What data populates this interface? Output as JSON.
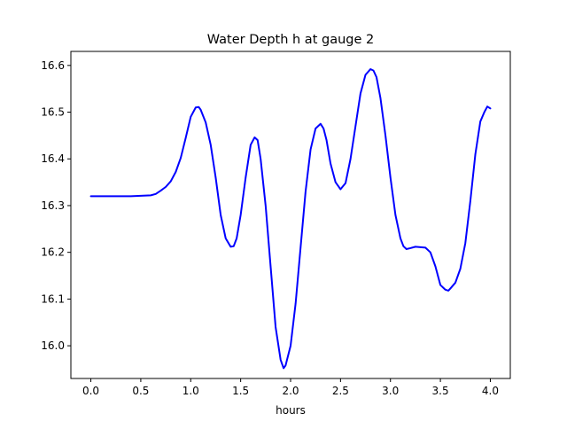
{
  "chart_data": {
    "type": "line",
    "title": "Water Depth h at gauge 2",
    "xlabel": "hours",
    "ylabel": "",
    "xlim": [
      -0.2,
      4.2
    ],
    "ylim": [
      15.93,
      16.63
    ],
    "xticks": [
      0.0,
      0.5,
      1.0,
      1.5,
      2.0,
      2.5,
      3.0,
      3.5,
      4.0
    ],
    "xtick_labels": [
      "0.0",
      "0.5",
      "1.0",
      "1.5",
      "2.0",
      "2.5",
      "3.0",
      "3.5",
      "4.0"
    ],
    "yticks": [
      16.0,
      16.1,
      16.2,
      16.3,
      16.4,
      16.5,
      16.6
    ],
    "ytick_labels": [
      "16.0",
      "16.1",
      "16.2",
      "16.3",
      "16.4",
      "16.5",
      "16.6"
    ],
    "grid": false,
    "series": [
      {
        "color": "#0000ff",
        "x": [
          0.0,
          0.2,
          0.4,
          0.6,
          0.65,
          0.7,
          0.75,
          0.8,
          0.85,
          0.9,
          0.95,
          1.0,
          1.05,
          1.08,
          1.1,
          1.15,
          1.2,
          1.25,
          1.3,
          1.35,
          1.4,
          1.43,
          1.46,
          1.5,
          1.55,
          1.6,
          1.64,
          1.67,
          1.7,
          1.75,
          1.8,
          1.85,
          1.9,
          1.93,
          1.95,
          2.0,
          2.05,
          2.1,
          2.15,
          2.2,
          2.25,
          2.3,
          2.33,
          2.36,
          2.4,
          2.45,
          2.5,
          2.55,
          2.6,
          2.65,
          2.7,
          2.75,
          2.8,
          2.83,
          2.86,
          2.9,
          2.95,
          3.0,
          3.05,
          3.1,
          3.13,
          3.16,
          3.2,
          3.25,
          3.3,
          3.35,
          3.4,
          3.45,
          3.5,
          3.55,
          3.58,
          3.61,
          3.65,
          3.7,
          3.75,
          3.8,
          3.85,
          3.9,
          3.94,
          3.97,
          4.0
        ],
        "y": [
          16.32,
          16.32,
          16.32,
          16.322,
          16.325,
          16.332,
          16.34,
          16.352,
          16.372,
          16.402,
          16.445,
          16.49,
          16.51,
          16.511,
          16.505,
          16.478,
          16.43,
          16.36,
          16.28,
          16.23,
          16.212,
          16.213,
          16.23,
          16.28,
          16.36,
          16.43,
          16.446,
          16.44,
          16.4,
          16.3,
          16.17,
          16.04,
          15.97,
          15.952,
          15.958,
          16.0,
          16.09,
          16.21,
          16.33,
          16.42,
          16.465,
          16.475,
          16.465,
          16.44,
          16.39,
          16.35,
          16.335,
          16.348,
          16.4,
          16.47,
          16.54,
          16.58,
          16.592,
          16.589,
          16.575,
          16.53,
          16.45,
          16.36,
          16.28,
          16.23,
          16.213,
          16.207,
          16.209,
          16.212,
          16.211,
          16.21,
          16.2,
          16.17,
          16.13,
          16.12,
          16.118,
          16.125,
          16.135,
          16.165,
          16.22,
          16.31,
          16.41,
          16.48,
          16.5,
          16.512,
          16.508
        ]
      }
    ]
  }
}
